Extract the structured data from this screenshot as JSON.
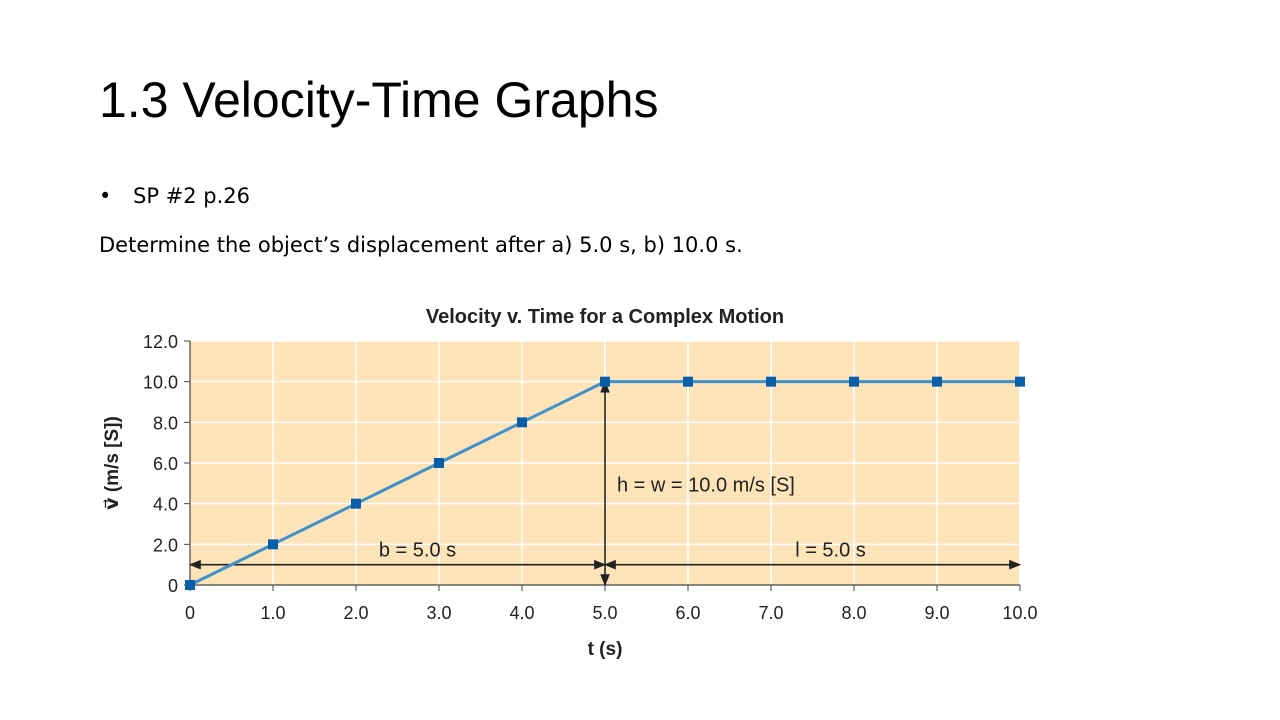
{
  "slide": {
    "title": "1.3 Velocity-Time Graphs",
    "bullet": "SP #2 p.26",
    "body": "Determine the object’s displacement after a) 5.0 s, b) 10.0 s."
  },
  "colors": {
    "plot_background": "#fce3b8",
    "line": "#3f91cb",
    "marker": "#0a5ea8",
    "grid": "#ffffff",
    "annotation": "#222222"
  },
  "chart_data": {
    "type": "line",
    "title": "Velocity v. Time for a Complex Motion",
    "xlabel": "t (s)",
    "ylabel": "v⃗ (m/s [S])",
    "xlim": [
      0,
      10
    ],
    "ylim": [
      0,
      12
    ],
    "grid": true,
    "x_ticks": [
      0,
      1,
      2,
      3,
      4,
      5,
      6,
      7,
      8,
      9,
      10
    ],
    "x_tick_labels": [
      "0",
      "1.0",
      "2.0",
      "3.0",
      "4.0",
      "5.0",
      "6.0",
      "7.0",
      "8.0",
      "9.0",
      "10.0"
    ],
    "y_ticks": [
      0,
      2,
      4,
      6,
      8,
      10,
      12
    ],
    "y_tick_labels": [
      "0",
      "2.0",
      "4.0",
      "6.0",
      "8.0",
      "10.0",
      "12.0"
    ],
    "series": [
      {
        "x": [
          0,
          1,
          2,
          3,
          4,
          5,
          6,
          7,
          8,
          9,
          10
        ],
        "y": [
          0,
          2,
          4,
          6,
          8,
          10,
          10,
          10,
          10,
          10,
          10
        ]
      }
    ],
    "annotations": {
      "base": {
        "text": "b = 5.0 s",
        "x_from": 0,
        "x_to": 5,
        "y": 1
      },
      "length": {
        "text": "l = 5.0 s",
        "x_from": 5,
        "x_to": 10,
        "y": 1
      },
      "height": {
        "text": "h = w = 10.0 m/s [S]",
        "x": 5,
        "y_from": 0,
        "y_to": 10
      }
    }
  }
}
